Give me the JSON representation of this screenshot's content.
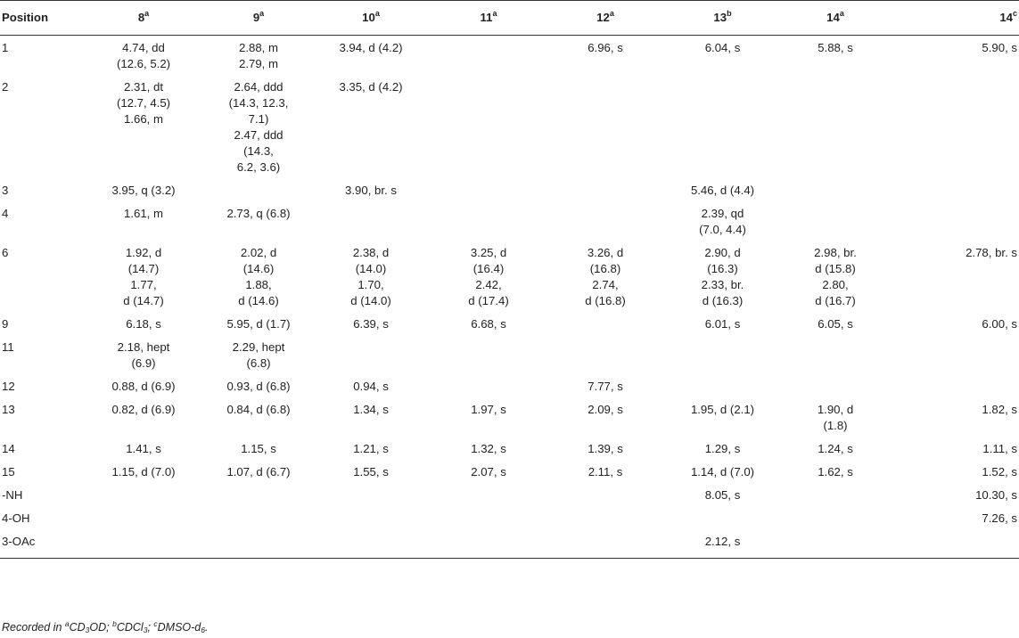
{
  "table": {
    "headers": [
      {
        "label": "Position",
        "sup": ""
      },
      {
        "label": "8",
        "sup": "a"
      },
      {
        "label": "9",
        "sup": "a"
      },
      {
        "label": "10",
        "sup": "a"
      },
      {
        "label": "11",
        "sup": "a"
      },
      {
        "label": "12",
        "sup": "a"
      },
      {
        "label": "13",
        "sup": "b"
      },
      {
        "label": "14",
        "sup": "a"
      },
      {
        "label": "14",
        "sup": "c"
      }
    ],
    "rows": [
      {
        "position": "1",
        "cells": [
          [
            "4.74, dd",
            "(12.6, 5.2)"
          ],
          [
            "2.88, m",
            "2.79, m"
          ],
          [
            "3.94, d (4.2)"
          ],
          [],
          [
            "6.96, s"
          ],
          [
            "6.04, s"
          ],
          [
            "5.88, s"
          ],
          [
            "5.90, s"
          ]
        ]
      },
      {
        "position": "2",
        "cells": [
          [
            "2.31, dt",
            "(12.7, 4.5)",
            "1.66, m"
          ],
          [
            "2.64, ddd",
            "(14.3, 12.3,",
            "7.1)",
            "2.47, ddd",
            "(14.3,",
            "6.2, 3.6)"
          ],
          [
            "3.35, d (4.2)"
          ],
          [],
          [],
          [],
          [],
          []
        ]
      },
      {
        "position": "3",
        "cells": [
          [
            "3.95, q (3.2)"
          ],
          [],
          [
            "3.90, br. s"
          ],
          [],
          [],
          [
            "5.46, d (4.4)"
          ],
          [],
          []
        ]
      },
      {
        "position": "4",
        "cells": [
          [
            "1.61, m"
          ],
          [
            "2.73, q (6.8)"
          ],
          [],
          [],
          [],
          [
            "2.39, qd",
            "(7.0, 4.4)"
          ],
          [],
          []
        ]
      },
      {
        "position": "6",
        "cells": [
          [
            "1.92, d",
            "(14.7)",
            "1.77,",
            "d (14.7)"
          ],
          [
            "2.02, d",
            "(14.6)",
            "1.88,",
            "d (14.6)"
          ],
          [
            "2.38, d",
            "(14.0)",
            "1.70,",
            "d (14.0)"
          ],
          [
            "3.25, d",
            "(16.4)",
            "2.42,",
            "d (17.4)"
          ],
          [
            "3.26, d",
            "(16.8)",
            "2.74,",
            "d (16.8)"
          ],
          [
            "2.90, d",
            "(16.3)",
            "2.33, br.",
            "d (16.3)"
          ],
          [
            "2.98, br.",
            "d (15.8)",
            "2.80,",
            "d (16.7)"
          ],
          [
            "2.78, br. s"
          ]
        ]
      },
      {
        "position": "9",
        "cells": [
          [
            "6.18, s"
          ],
          [
            "5.95, d (1.7)"
          ],
          [
            "6.39, s"
          ],
          [
            "6.68, s"
          ],
          [],
          [
            "6.01, s"
          ],
          [
            "6.05, s"
          ],
          [
            "6.00, s"
          ]
        ]
      },
      {
        "position": "11",
        "cells": [
          [
            "2.18, hept",
            "(6.9)"
          ],
          [
            "2.29, hept",
            "(6.8)"
          ],
          [],
          [],
          [],
          [],
          [],
          []
        ]
      },
      {
        "position": "12",
        "cells": [
          [
            "0.88, d (6.9)"
          ],
          [
            "0.93, d (6.8)"
          ],
          [
            "0.94, s"
          ],
          [],
          [
            "7.77, s"
          ],
          [],
          [],
          []
        ]
      },
      {
        "position": "13",
        "cells": [
          [
            "0.82, d (6.9)"
          ],
          [
            "0.84, d (6.8)"
          ],
          [
            "1.34, s"
          ],
          [
            "1.97, s"
          ],
          [
            "2.09, s"
          ],
          [
            "1.95, d (2.1)"
          ],
          [
            "1.90, d",
            "(1.8)"
          ],
          [
            "1.82, s"
          ]
        ]
      },
      {
        "position": "14",
        "cells": [
          [
            "1.41, s"
          ],
          [
            "1.15, s"
          ],
          [
            "1.21, s"
          ],
          [
            "1.32, s"
          ],
          [
            "1.39, s"
          ],
          [
            "1.29, s"
          ],
          [
            "1.24, s"
          ],
          [
            "1.11, s"
          ]
        ]
      },
      {
        "position": "15",
        "cells": [
          [
            "1.15, d (7.0)"
          ],
          [
            "1.07, d (6.7)"
          ],
          [
            "1.55, s"
          ],
          [
            "2.07, s"
          ],
          [
            "2.11, s"
          ],
          [
            "1.14, d (7.0)"
          ],
          [
            "1.62, s"
          ],
          [
            "1.52, s"
          ]
        ]
      },
      {
        "position": "-NH",
        "cells": [
          [],
          [],
          [],
          [],
          [],
          [
            "8.05, s"
          ],
          [],
          [
            "10.30, s"
          ]
        ]
      },
      {
        "position": "4-OH",
        "cells": [
          [],
          [],
          [],
          [],
          [],
          [],
          [],
          [
            "7.26, s"
          ]
        ]
      },
      {
        "position": "3-OAc",
        "cells": [
          [],
          [],
          [],
          [],
          [],
          [
            "2.12, s"
          ],
          [],
          []
        ]
      }
    ]
  },
  "footnote": {
    "prefix": "Recorded in ",
    "parts": [
      {
        "sup": "a",
        "text": "CD",
        "sub": "3",
        "tail": "OD; "
      },
      {
        "sup": "b",
        "text": "CDCl",
        "sub": "3",
        "tail": "; "
      },
      {
        "sup": "c",
        "text": "DMSO-d",
        "sub": "6",
        "tail": "."
      }
    ]
  }
}
